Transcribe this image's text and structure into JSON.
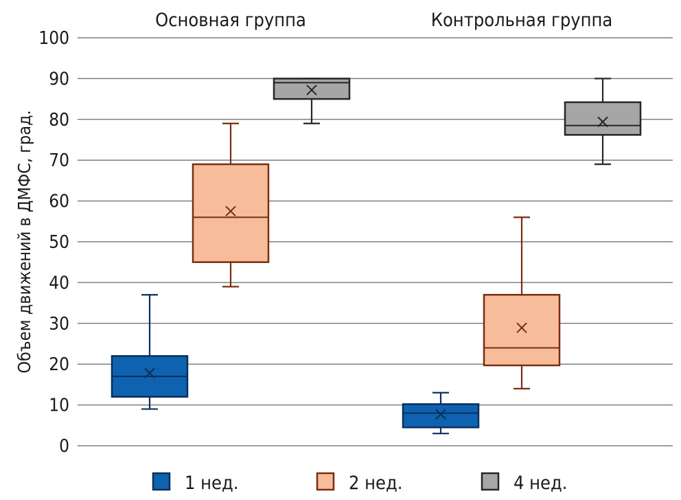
{
  "chart_data": {
    "type": "box",
    "ylabel": "Объем движений в ДМФС, град.",
    "ylim": [
      0,
      100
    ],
    "yticks": [
      0,
      10,
      20,
      30,
      40,
      50,
      60,
      70,
      80,
      90,
      100
    ],
    "grid": true,
    "legend_position": "bottom",
    "groups": [
      {
        "name": "Основная группа",
        "boxes": [
          {
            "series": "1 нед.",
            "min": 9,
            "q1": 12,
            "median": 17,
            "q3": 22,
            "max": 37,
            "mean": 17.8
          },
          {
            "series": "2 нед.",
            "min": 39,
            "q1": 45,
            "median": 56,
            "q3": 69,
            "max": 79,
            "mean": 57.5
          },
          {
            "series": "4 нед.",
            "min": 79,
            "q1": 85,
            "median": 89,
            "q3": 90,
            "max": 90,
            "mean": 87.2
          }
        ]
      },
      {
        "name": "Контрольная группа",
        "boxes": [
          {
            "series": "1 нед.",
            "min": 3,
            "q1": 4.5,
            "median": 8,
            "q3": 10.2,
            "max": 13,
            "mean": 7.7
          },
          {
            "series": "2 нед.",
            "min": 14,
            "q1": 19.7,
            "median": 24,
            "q3": 37,
            "max": 56,
            "mean": 28.9
          },
          {
            "series": "4 нед.",
            "min": 69,
            "q1": 76.2,
            "median": 78.5,
            "q3": 84.2,
            "max": 90,
            "mean": 79.4
          }
        ]
      }
    ],
    "series": [
      {
        "name": "1 нед.",
        "fill": "#0e62b0",
        "stroke": "#0b2f5a"
      },
      {
        "name": "2 нед.",
        "fill": "#f7bd9b",
        "stroke": "#7a2c12"
      },
      {
        "name": "4 нед.",
        "fill": "#a6a6a6",
        "stroke": "#262626"
      }
    ]
  }
}
